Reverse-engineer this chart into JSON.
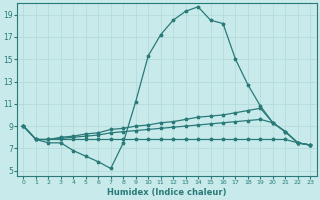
{
  "xlabel": "Humidex (Indice chaleur)",
  "bg_color": "#c8eaea",
  "line_color": "#2a7a7a",
  "grid_color": "#b0d8d8",
  "xlim": [
    -0.5,
    23.5
  ],
  "ylim": [
    4.5,
    20.0
  ],
  "xticks": [
    0,
    1,
    2,
    3,
    4,
    5,
    6,
    7,
    8,
    9,
    10,
    11,
    12,
    13,
    14,
    15,
    16,
    17,
    18,
    19,
    20,
    21,
    22,
    23
  ],
  "yticks": [
    5,
    7,
    9,
    11,
    13,
    15,
    17,
    19
  ],
  "line1_x": [
    0,
    1,
    2,
    3,
    4,
    5,
    6,
    7,
    8,
    9,
    10,
    11,
    12,
    13,
    14,
    15,
    16,
    17,
    18,
    19,
    20,
    21,
    22,
    23
  ],
  "line1_y": [
    9.0,
    7.8,
    7.5,
    7.5,
    6.8,
    6.3,
    5.8,
    5.2,
    7.5,
    11.2,
    15.3,
    17.2,
    18.5,
    19.3,
    19.7,
    18.5,
    18.2,
    15.0,
    12.7,
    10.8,
    9.3,
    8.5,
    7.5,
    7.3
  ],
  "line2_x": [
    0,
    1,
    2,
    3,
    4,
    5,
    6,
    7,
    8,
    9,
    10,
    11,
    12,
    13,
    14,
    15,
    16,
    17,
    18,
    19,
    20,
    21,
    22,
    23
  ],
  "line2_y": [
    9.0,
    7.8,
    7.8,
    8.0,
    8.1,
    8.3,
    8.4,
    8.7,
    8.8,
    9.0,
    9.1,
    9.3,
    9.4,
    9.6,
    9.8,
    9.9,
    10.0,
    10.2,
    10.4,
    10.6,
    9.3,
    8.5,
    7.5,
    7.3
  ],
  "line3_x": [
    0,
    1,
    2,
    3,
    4,
    5,
    6,
    7,
    8,
    9,
    10,
    11,
    12,
    13,
    14,
    15,
    16,
    17,
    18,
    19,
    20,
    21,
    22,
    23
  ],
  "line3_y": [
    9.0,
    7.8,
    7.8,
    7.9,
    8.0,
    8.1,
    8.2,
    8.4,
    8.5,
    8.6,
    8.7,
    8.8,
    8.9,
    9.0,
    9.1,
    9.2,
    9.3,
    9.4,
    9.5,
    9.6,
    9.3,
    8.5,
    7.5,
    7.3
  ],
  "line4_x": [
    0,
    1,
    2,
    3,
    4,
    5,
    6,
    7,
    8,
    9,
    10,
    11,
    12,
    13,
    14,
    15,
    16,
    17,
    18,
    19,
    20,
    21,
    22,
    23
  ],
  "line4_y": [
    9.0,
    7.8,
    7.8,
    7.8,
    7.8,
    7.8,
    7.8,
    7.8,
    7.8,
    7.8,
    7.8,
    7.8,
    7.8,
    7.8,
    7.8,
    7.8,
    7.8,
    7.8,
    7.8,
    7.8,
    7.8,
    7.8,
    7.5,
    7.3
  ]
}
